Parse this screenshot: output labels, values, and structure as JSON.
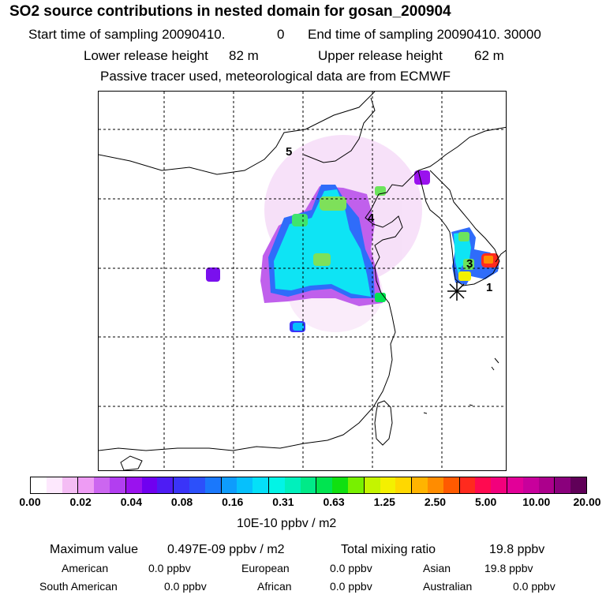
{
  "header": {
    "title": "SO2 source contributions in nested domain for gosan_200904",
    "start_label": "Start time of sampling 20090410.",
    "start_value": "0",
    "end_label": "End time of sampling 20090410. 30000",
    "lower_label": "Lower release height",
    "lower_value": "82 m",
    "upper_label": "Upper release height",
    "upper_value": "62 m",
    "note": "Passive tracer used, meteorological data are from ECMWF"
  },
  "map": {
    "region_labels": [
      "1",
      "3",
      "4",
      "5"
    ],
    "receptor_marker": "star-asterisk-icon"
  },
  "colorbar": {
    "colors": [
      "#ffffff",
      "#fde8fd",
      "#f4bdf4",
      "#ee9cf4",
      "#cc66f0",
      "#b23ef0",
      "#9a12ee",
      "#7000f0",
      "#4e1cf4",
      "#3a34f8",
      "#2c50fa",
      "#1a78fc",
      "#0e9cfc",
      "#06c0fc",
      "#04e0f8",
      "#02f4e6",
      "#00f0bc",
      "#00ea88",
      "#00e450",
      "#10e010",
      "#78f000",
      "#c4f400",
      "#f4f000",
      "#ffd800",
      "#ffb400",
      "#ff8c00",
      "#ff5a00",
      "#ff2a1e",
      "#ff0a50",
      "#f2007c",
      "#e20098",
      "#c8009c",
      "#ac008c",
      "#8a007c",
      "#600058"
    ],
    "ticks": [
      "0.00",
      "0.02",
      "0.04",
      "0.08",
      "0.16",
      "0.31",
      "0.63",
      "1.25",
      "2.50",
      "5.00",
      "10.00",
      "20.00"
    ],
    "unit": "10E-10 ppbv / m2"
  },
  "summary": {
    "max_label": "Maximum value",
    "max_value": "0.497E-09 ppbv / m2",
    "total_label": "Total mixing ratio",
    "total_value": "19.8 ppbv",
    "regions": [
      {
        "name": "American",
        "value": "0.0 ppbv"
      },
      {
        "name": "European",
        "value": "0.0 ppbv"
      },
      {
        "name": "Asian",
        "value": "19.8 ppbv"
      },
      {
        "name": "South American",
        "value": "0.0 ppbv"
      },
      {
        "name": "African",
        "value": "0.0 ppbv"
      },
      {
        "name": "Australian",
        "value": "0.0 ppbv"
      }
    ]
  }
}
